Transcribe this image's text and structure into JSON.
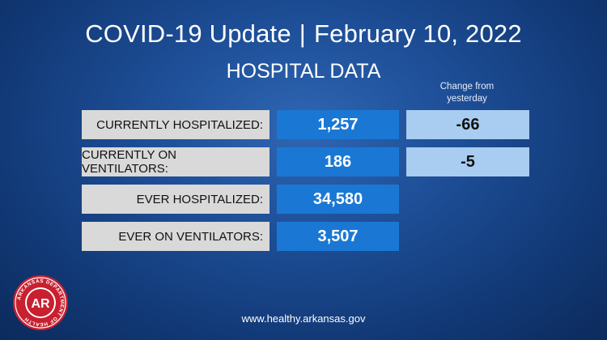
{
  "header": {
    "title": "COVID-19 Update",
    "separator": "|",
    "date": "February 10, 2022"
  },
  "subtitle": "HOSPITAL DATA",
  "change_header": {
    "line1": "Change from",
    "line2": "yesterday"
  },
  "rows": [
    {
      "label": "CURRENTLY HOSPITALIZED:",
      "value": "1,257",
      "change": "-66"
    },
    {
      "label": "CURRENTLY ON VENTILATORS:",
      "value": "186",
      "change": "-5"
    },
    {
      "label": "EVER HOSPITALIZED:",
      "value": "34,580"
    },
    {
      "label": "EVER ON VENTILATORS:",
      "value": "3,507"
    }
  ],
  "logo": {
    "icon": "arkansas-department-of-health-seal",
    "ring_text": "ARKANSAS DEPARTMENT OF HEALTH",
    "center_text": "AR",
    "color": "#c8202f"
  },
  "footer": {
    "url": "www.healthy.arkansas.gov"
  }
}
